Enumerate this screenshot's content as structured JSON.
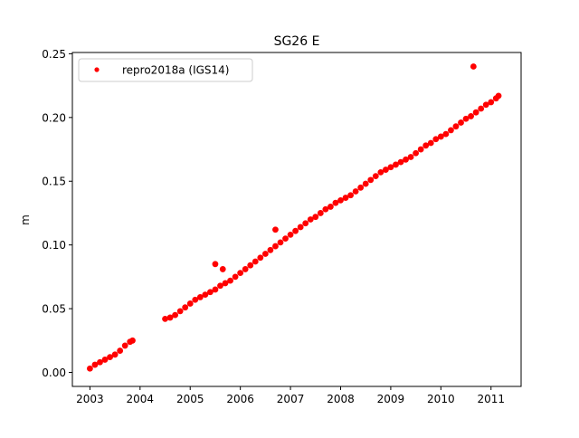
{
  "chart_data": {
    "type": "scatter",
    "title": "SG26 E",
    "xlabel": "",
    "ylabel": "m",
    "xlim": [
      2002.65,
      2011.6
    ],
    "ylim": [
      -0.011,
      0.251
    ],
    "xticks": [
      2003,
      2004,
      2005,
      2006,
      2007,
      2008,
      2009,
      2010,
      2011
    ],
    "xtick_labels": [
      "2003",
      "2004",
      "2005",
      "2006",
      "2007",
      "2008",
      "2009",
      "2010",
      "2011"
    ],
    "yticks": [
      0.0,
      0.05,
      0.1,
      0.15,
      0.2,
      0.25
    ],
    "ytick_labels": [
      "0.00",
      "0.05",
      "0.10",
      "0.15",
      "0.20",
      "0.25"
    ],
    "grid": false,
    "legend": {
      "placement": "top-left",
      "entries": [
        "repro2018a (IGS14)"
      ]
    },
    "series": [
      {
        "name": "repro2018a (IGS14)",
        "color": "#ff0000",
        "marker": "dot",
        "x": [
          2003.0,
          2003.1,
          2003.2,
          2003.3,
          2003.4,
          2003.5,
          2003.6,
          2003.7,
          2003.8,
          2003.85,
          2004.5,
          2004.6,
          2004.7,
          2004.8,
          2004.9,
          2005.0,
          2005.1,
          2005.2,
          2005.3,
          2005.4,
          2005.5,
          2005.6,
          2005.7,
          2005.8,
          2005.9,
          2006.0,
          2006.1,
          2006.2,
          2006.3,
          2006.4,
          2006.5,
          2006.6,
          2006.7,
          2006.8,
          2006.9,
          2007.0,
          2007.1,
          2007.2,
          2007.3,
          2007.4,
          2007.5,
          2007.6,
          2007.7,
          2007.8,
          2007.9,
          2008.0,
          2008.1,
          2008.2,
          2008.3,
          2008.4,
          2008.5,
          2008.6,
          2008.7,
          2008.8,
          2008.9,
          2009.0,
          2009.1,
          2009.2,
          2009.3,
          2009.4,
          2009.5,
          2009.6,
          2009.7,
          2009.8,
          2009.9,
          2010.0,
          2010.1,
          2010.2,
          2010.3,
          2010.4,
          2010.5,
          2010.6,
          2010.7,
          2010.8,
          2010.9,
          2011.0,
          2011.1,
          2011.15,
          2005.5,
          2005.65,
          2006.7,
          2010.65
        ],
        "y": [
          0.003,
          0.006,
          0.008,
          0.01,
          0.012,
          0.014,
          0.017,
          0.021,
          0.024,
          0.025,
          0.042,
          0.043,
          0.045,
          0.048,
          0.051,
          0.054,
          0.057,
          0.059,
          0.061,
          0.063,
          0.065,
          0.068,
          0.07,
          0.072,
          0.075,
          0.078,
          0.081,
          0.084,
          0.087,
          0.09,
          0.093,
          0.096,
          0.099,
          0.102,
          0.105,
          0.108,
          0.111,
          0.114,
          0.117,
          0.12,
          0.122,
          0.125,
          0.128,
          0.13,
          0.133,
          0.135,
          0.137,
          0.139,
          0.142,
          0.145,
          0.148,
          0.151,
          0.154,
          0.157,
          0.159,
          0.161,
          0.163,
          0.165,
          0.167,
          0.169,
          0.172,
          0.175,
          0.178,
          0.18,
          0.183,
          0.185,
          0.187,
          0.19,
          0.193,
          0.196,
          0.199,
          0.201,
          0.204,
          0.207,
          0.21,
          0.212,
          0.215,
          0.217,
          0.085,
          0.081,
          0.112,
          0.24
        ]
      }
    ]
  }
}
